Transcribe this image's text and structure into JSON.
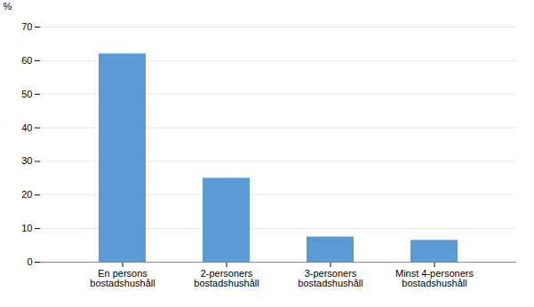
{
  "chart_data": {
    "type": "bar",
    "categories": [
      "En persons\nbostadshushåll",
      "2-personers\nbostadshushåll",
      "3-personers\nbostadshushåll",
      "Minst 4-personers\nbostadshushåll"
    ],
    "values": [
      62,
      25,
      7.5,
      6.5
    ],
    "color": "#5b9bd5",
    "ylabel": "%",
    "ylim": [
      0,
      70
    ],
    "yticks": [
      0,
      10,
      20,
      30,
      40,
      50,
      60,
      70
    ],
    "grid": true
  }
}
